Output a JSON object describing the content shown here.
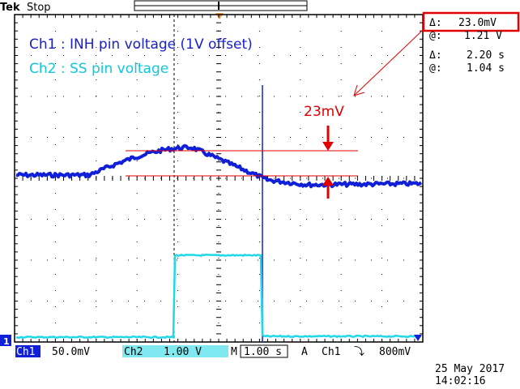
{
  "header": {
    "brand": "Tek",
    "run_state": "Stop"
  },
  "cursor_readout": {
    "v_delta_symbol": "Δ:",
    "v_delta_value": "23.0mV",
    "v_at_symbol": "@:",
    "v_at_value": "1.21 V",
    "t_delta_symbol": "Δ:",
    "t_delta_value": "2.20 s",
    "t_at_symbol": "@:",
    "t_at_value": "1.04 s"
  },
  "annotations": {
    "ch1_label": "Ch1 : INH pin voltage (1V offset)",
    "ch2_label": "Ch2 : SS pin voltage",
    "delta_label": "23mV"
  },
  "status_bar": {
    "ch1_name": "Ch1",
    "ch1_scale": "50.0mV",
    "ch2_name": "Ch2",
    "ch2_scale": "1.00 V",
    "time_prefix": "M",
    "time_scale": "1.00 s",
    "trigger_prefix": "A",
    "trigger_source": "Ch1",
    "trigger_slope_symbol": "⤵",
    "trigger_level": "800mV"
  },
  "channel_marker": "1",
  "datetime": {
    "date": "25 May 2017",
    "time": "14:02:16"
  },
  "colors": {
    "ch1": "#1020d8",
    "ch2": "#20d8e8",
    "annotation_red": "#e00000",
    "grid": "#000000"
  }
}
